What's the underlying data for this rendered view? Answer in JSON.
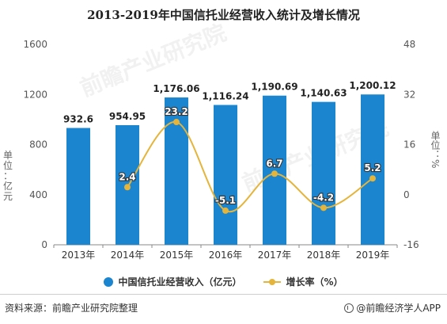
{
  "title": "2013-2019年中国信托业经营收入统计及增长情况",
  "chart_data": {
    "type": "bar",
    "categories": [
      "2013年",
      "2014年",
      "2015年",
      "2016年",
      "2017年",
      "2018年",
      "2019年"
    ],
    "series": [
      {
        "name": "中国信托业经营收入（亿元）",
        "type": "bar",
        "axis": "left",
        "values": [
          932.6,
          954.95,
          1176.06,
          1116.24,
          1190.69,
          1140.63,
          1200.12
        ],
        "labels": [
          "932.6",
          "954.95",
          "1,176.06",
          "1,116.24",
          "1,190.69",
          "1,140.63",
          "1,200.12"
        ]
      },
      {
        "name": "增长率（%）",
        "type": "line",
        "axis": "right",
        "values": [
          null,
          2.4,
          23.2,
          -5.1,
          6.7,
          -4.2,
          5.2
        ],
        "labels": [
          "",
          "2.4",
          "23.2",
          "-5.1",
          "6.7",
          "-4.2",
          "5.2"
        ]
      }
    ],
    "ylabel": "单位：亿元",
    "ylabel_right": "单位：%",
    "ylim": [
      0,
      1600
    ],
    "yticks": [
      0,
      400,
      800,
      1200,
      1600
    ],
    "ylim_right": [
      -16,
      48
    ],
    "yticks_right": [
      -16,
      0,
      16,
      32,
      48
    ],
    "grid": false,
    "legend": "bottom"
  },
  "colors": {
    "bar": "#1b86cf",
    "line": "#e5b43a",
    "axis": "#888888"
  },
  "footer": {
    "source": "资料来源：前瞻产业研究院整理",
    "brand": "@前瞻经济学人APP"
  }
}
